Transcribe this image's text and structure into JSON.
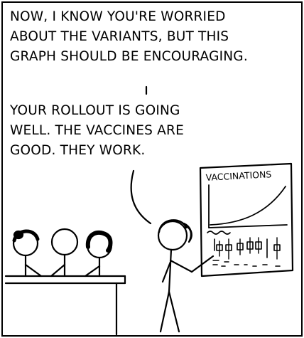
{
  "speech": {
    "top_lines": [
      "NOW, I KNOW YOU'RE WORRIED",
      "ABOUT THE VARIANTS, BUT THIS",
      "GRAPH SHOULD BE ENCOURAGING."
    ],
    "bottom_lines": [
      "YOUR ROLLOUT IS GOING",
      "WELL. THE VACCINES ARE",
      "GOOD. THEY WORK."
    ]
  },
  "chart": {
    "title": "VACCINATIONS"
  },
  "colors": {
    "ink": "#000000",
    "paper": "#ffffff"
  }
}
